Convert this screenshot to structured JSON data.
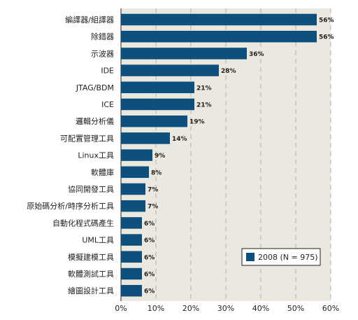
{
  "chart_data": {
    "type": "bar",
    "orientation": "horizontal",
    "categories": [
      "編譯器/組譯器",
      "除錯器",
      "示波器",
      "IDE",
      "JTAG/BDM",
      "ICE",
      "邏輯分析儀",
      "可配置管理工具",
      "Linux工具",
      "軟體庫",
      "協同開發工具",
      "原始碼分析/時序分析工具",
      "自動化程式碼產生",
      "UML工具",
      "模擬建模工具",
      "軟體測試工具",
      "繪圖設計工具"
    ],
    "series": [
      {
        "name": "2008 (N = 975)",
        "values": [
          56,
          56,
          36,
          28,
          21,
          21,
          19,
          14,
          9,
          8,
          7,
          7,
          6,
          6,
          6,
          6,
          6
        ],
        "labels": [
          "56%",
          "56%",
          "36%",
          "28%",
          "21%",
          "21%",
          "19%",
          "14%",
          "9%",
          "8%",
          "7%",
          "7%",
          "6%",
          "6%",
          "6%",
          "6%",
          "6%"
        ],
        "color": "#0d4f7d"
      }
    ],
    "xlim": [
      0,
      60
    ],
    "xticks": [
      "0%",
      "10%",
      "20%",
      "30%",
      "40%",
      "50%",
      "60%"
    ],
    "grid": true,
    "legend_position": "bottom-right",
    "plot_background": "#ebe9df"
  }
}
